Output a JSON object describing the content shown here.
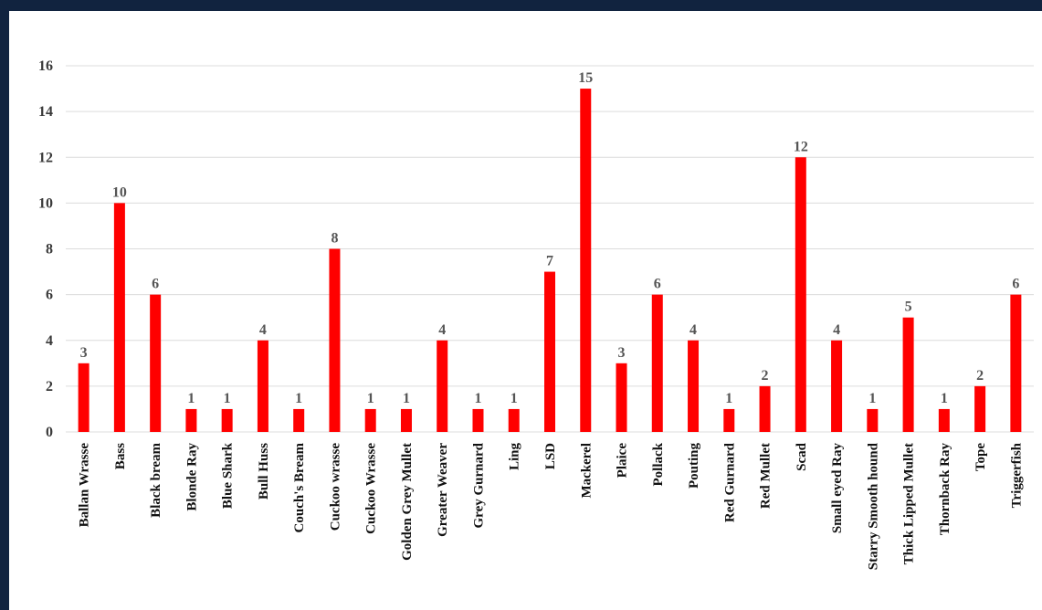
{
  "chart_data": {
    "type": "bar",
    "title": "",
    "xlabel": "",
    "ylabel": "",
    "ylim": [
      0,
      16
    ],
    "yticks": [
      0,
      2,
      4,
      6,
      8,
      10,
      12,
      14,
      16
    ],
    "grid": true,
    "legend": "none",
    "bar_color": "#ff0000",
    "categories": [
      "Ballan Wrasse",
      "Bass",
      "Black bream",
      "Blonde Ray",
      "Blue Shark",
      "Bull Huss",
      "Couch's Bream",
      "Cuckoo wrasse",
      "Cuckoo Wrasse",
      "Golden Grey Mullet",
      "Greater Weaver",
      "Grey Gurnard",
      "Ling",
      "LSD",
      "Mackerel",
      "Plaice",
      "Pollack",
      "Pouting",
      "Red Gurnard",
      "Red Mullet",
      "Scad",
      "Small eyed Ray",
      "Starry Smooth hound",
      "Thick Lipped Mullet",
      "Thornback Ray",
      "Tope",
      "Triggerfish"
    ],
    "values": [
      3,
      10,
      6,
      1,
      1,
      4,
      1,
      8,
      1,
      1,
      4,
      1,
      1,
      7,
      15,
      3,
      6,
      4,
      1,
      2,
      12,
      4,
      1,
      5,
      1,
      2,
      6
    ]
  }
}
